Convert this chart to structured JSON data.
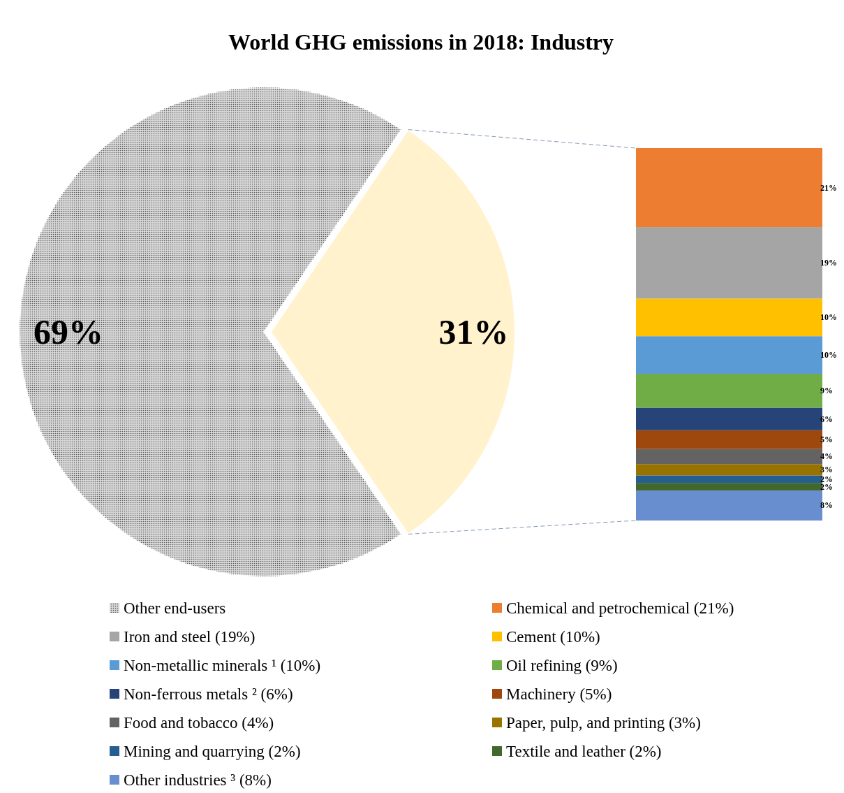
{
  "chart_data": [
    {
      "type": "pie",
      "title": "World GHG emissions in 2018: Industry",
      "categories": [
        "Other end-users",
        null
      ],
      "values": [
        69,
        31
      ],
      "colors": [
        "#d9d9d9",
        "#fff2cc"
      ],
      "value_labels": [
        "69%",
        "31%"
      ],
      "legend": "bottom"
    },
    {
      "type": "bar",
      "stacked": true,
      "categories": [
        null
      ],
      "legend": "bottom",
      "series": [
        {
          "name": "Other industries ³ (8%)",
          "color": "#698ed0",
          "values": [
            8
          ],
          "value_labels": [
            "8%"
          ]
        },
        {
          "name": "Textile and leather (2%)",
          "color": "#43682b",
          "values": [
            2
          ],
          "value_labels": [
            "2%"
          ]
        },
        {
          "name": "Mining and quarrying (2%)",
          "color": "#255e91",
          "values": [
            2
          ],
          "value_labels": [
            "2%"
          ]
        },
        {
          "name": "Paper, pulp, and printing (3%)",
          "color": "#997300",
          "values": [
            3
          ],
          "value_labels": [
            "3%"
          ]
        },
        {
          "name": "Food and tobacco (4%)",
          "color": "#636363",
          "values": [
            4
          ],
          "value_labels": [
            "4%"
          ]
        },
        {
          "name": "Machinery (5%)",
          "color": "#9e480e",
          "values": [
            5
          ],
          "value_labels": [
            "5%"
          ]
        },
        {
          "name": "Non-ferrous metals ² (6%)",
          "color": "#264478",
          "values": [
            6
          ],
          "value_labels": [
            "6%"
          ]
        },
        {
          "name": "Oil refining (9%)",
          "color": "#70ad47",
          "values": [
            9
          ],
          "value_labels": [
            "9%"
          ]
        },
        {
          "name": "Non-metallic minerals ¹ (10%)",
          "color": "#5b9bd5",
          "values": [
            10
          ],
          "value_labels": [
            "10%"
          ]
        },
        {
          "name": "Cement (10%)",
          "color": "#ffc000",
          "values": [
            10
          ],
          "value_labels": [
            "10%"
          ]
        },
        {
          "name": "Iron and steel (19%)",
          "color": "#a5a5a5",
          "values": [
            19
          ],
          "value_labels": [
            "19%"
          ]
        },
        {
          "name": "Chemical and petrochemical (21%)",
          "color": "#ed7d31",
          "values": [
            21
          ],
          "value_labels": [
            "21%"
          ]
        }
      ]
    }
  ]
}
